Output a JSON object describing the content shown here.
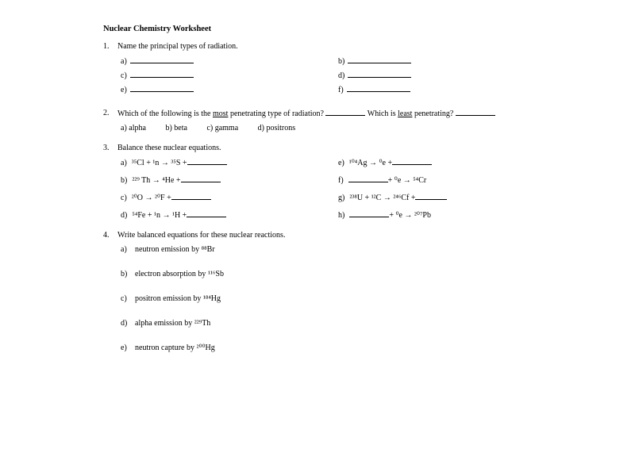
{
  "title": "Nuclear Chemistry Worksheet",
  "q1": {
    "num": "1.",
    "text": "Name the principal types of radiation.",
    "opts": {
      "a": "a)",
      "b": "b)",
      "c": "c)",
      "d": "d)",
      "e": "e)",
      "f": "f)"
    }
  },
  "q2": {
    "num": "2.",
    "text_pre": "Which of the following is the ",
    "text_most": "most",
    "text_mid": " penetrating type of radiation? ",
    "text_which": "  Which is ",
    "text_least": "least",
    "text_end": " penetrating? ",
    "opts": {
      "a": "a) alpha",
      "b": "b) beta",
      "c": "c) gamma",
      "d": "d) positrons"
    }
  },
  "q3": {
    "num": "3.",
    "text": "Balance these nuclear equations.",
    "a_label": "a)",
    "a_eq_pre": "³⁵Cl  +  ¹n   →   ³⁵S   +  ",
    "e_label": "e)",
    "e_eq_pre": "¹⁰⁴Ag   →   ⁰e   +  ",
    "b_label": "b)",
    "b_eq_pre": "²²⁹ Th   →    ⁴He  +  ",
    "f_label": "f)",
    "f_eq_mid": "   +  ⁰e  →  ⁵⁴Cr",
    "c_label": "c)",
    "c_eq_pre": "²⁰O   →   ²⁰F   +  ",
    "g_label": "g)",
    "g_eq_pre": "²³⁸U   +  ¹²C   →   ²⁴⁶Cf   +  ",
    "d_label": "d)",
    "d_eq_pre": "⁵⁴Fe   +   ¹n   →   ¹H   +  ",
    "h_label": "h)",
    "h_eq_mid": "   +  ⁰e  →  ²⁰⁷Pb"
  },
  "q4": {
    "num": "4.",
    "text": "Write balanced equations for these nuclear reactions.",
    "a_label": "a)",
    "a_text": "neutron emission by ⁸⁸Br",
    "b_label": "b)",
    "b_text": "electron absorption by ¹¹⁶Sb",
    "c_label": "c)",
    "c_text": "positron emission by ¹⁸⁴Hg",
    "d_label": "d)",
    "d_text": "alpha emission by ²²⁹Th",
    "e_label": "e)",
    "e_text": "neutron capture by ²⁰⁰Hg"
  },
  "styles": {
    "bg_color": "#ffffff",
    "text_color": "#000000",
    "font_family": "Times New Roman",
    "font_size_body": 10,
    "font_size_title": 10.5,
    "font_size_script": 6.5,
    "blank_width": 80,
    "blank_short_width": 50,
    "blank_tiny_width": 40
  }
}
